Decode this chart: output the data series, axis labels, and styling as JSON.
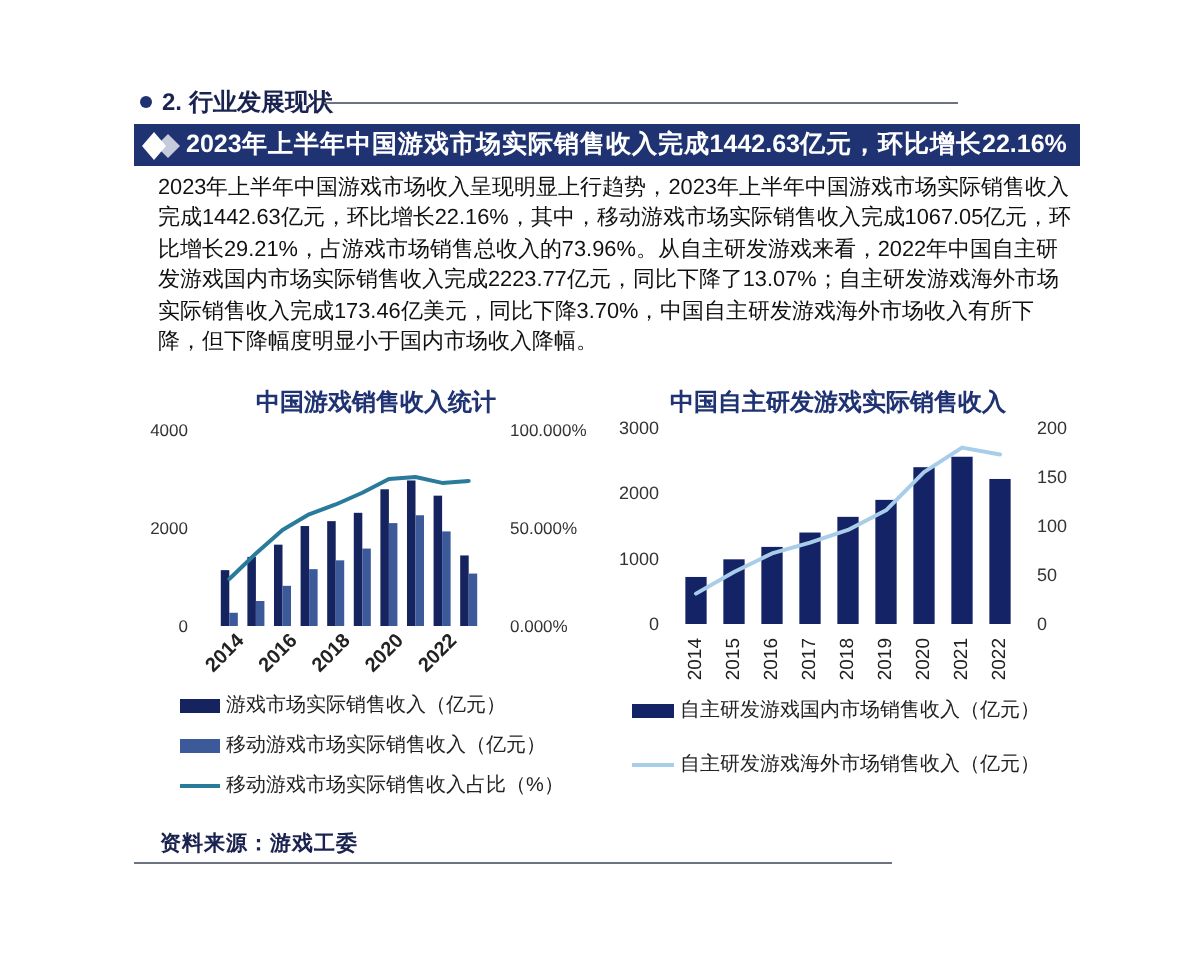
{
  "chart_data": [
    {
      "type": "other",
      "title": "2023年上半年中国游戏市场实际销售收入完成1442.63亿元，环比增长22.16%",
      "subtitle": "2023年上半年中国游戏市场收入呈现明显上行趋势，2023年上半年中国游戏市场实际销售收入完成1442.63亿元，环比增长22.16%，其中，移动游戏市场实际销售收入完成1067.05亿元，环比增长29.21%，占游戏市场销售总收入的73.96%。从自主研发游戏来看，2022年中国自主研发游戏国内市场实际销售收入完成2223.77亿元，同比下降了13.07%；自主研发游戏海外市场实际销售收入完成173.46亿美元，同比下降3.70%，中国自主研发游戏海外市场收入有所下降，但下降幅度明显小于国内市场收入降幅。",
      "annotations": [
        "2. 行业发展现状"
      ]
    },
    {
      "type": "bar",
      "title": "中国游戏销售收入统计",
      "categories": [
        "2014",
        null,
        "2016",
        null,
        "2018",
        null,
        "2020",
        null,
        "2022",
        null
      ],
      "series": [
        {
          "name": "游戏市场实际销售收入（亿元）",
          "color": "#15245f",
          "values": [
            1140,
            1410,
            1660,
            2040,
            2140,
            2310,
            2790,
            2970,
            2660,
            1440
          ]
        },
        {
          "name": "移动游戏市场实际销售收入（亿元）",
          "color": "#3c5a9a",
          "values": [
            270,
            510,
            820,
            1160,
            1340,
            1580,
            2100,
            2260,
            1930,
            1070
          ]
        },
        {
          "name": "移动游戏市场实际销售收入占比（%）",
          "type": "line",
          "axis": "y2",
          "color": "#2a7a9c",
          "values": [
            24,
            37,
            49,
            57,
            62,
            68,
            75,
            76,
            73,
            74
          ]
        }
      ],
      "ylim": [
        0,
        4000
      ],
      "yticks": [
        0,
        2000,
        4000
      ],
      "y2lim": [
        0,
        100
      ],
      "y2ticks": [
        {
          "value": 0,
          "label": "0.000%"
        },
        {
          "value": 50,
          "label": "50.000%"
        },
        {
          "value": 100,
          "label": "100.000%"
        }
      ],
      "legend": "bottom"
    },
    {
      "type": "bar",
      "title": "中国自主研发游戏实际销售收入",
      "categories": [
        "2014",
        "2015",
        "2016",
        "2017",
        "2018",
        "2019",
        "2020",
        "2021",
        "2022"
      ],
      "series": [
        {
          "name": "自主研发游戏国内市场销售收入（亿元）",
          "color": "#142266",
          "values": [
            720,
            990,
            1180,
            1400,
            1640,
            1900,
            2400,
            2560,
            2220
          ]
        },
        {
          "name": "自主研发游戏海外市场销售收入（亿元）",
          "type": "line",
          "axis": "y2",
          "color": "#a8cde8",
          "values": [
            31,
            53,
            72,
            83,
            96,
            116,
            155,
            180,
            173
          ]
        }
      ],
      "ylim": [
        0,
        3000
      ],
      "yticks": [
        0,
        1000,
        2000,
        3000
      ],
      "y2lim": [
        0,
        200
      ],
      "y2ticks": [
        0,
        50,
        100,
        150,
        200
      ],
      "legend": "bottom"
    },
    {
      "type": "other",
      "annotations": [
        "资料来源：游戏工委"
      ]
    }
  ]
}
